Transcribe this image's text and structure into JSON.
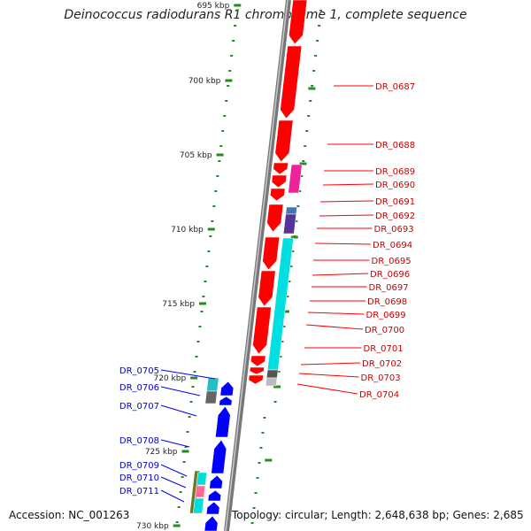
{
  "title": "Deinococcus radiodurans R1 chromosome 1, complete sequence",
  "footer": {
    "accession": "Accession: NC_001263",
    "topology": "Topology: circular; Length: 2,648,638 bp; Genes: 2,685"
  },
  "colors": {
    "forward_strand": "#ff0000",
    "reverse_strand": "#0000ff",
    "backbone": "#808080",
    "tick": "#228b22",
    "label_forward": "#cc0000",
    "label_reverse": "#0000cc"
  },
  "ruler_labels": [
    "695 kbp",
    "700 kbp",
    "705 kbp",
    "710 kbp",
    "715 kbp",
    "720 kbp",
    "725 kbp",
    "730 kbp"
  ],
  "genes_forward": [
    "DR_0687",
    "DR_0688",
    "DR_0689",
    "DR_0690",
    "DR_0691",
    "DR_0692",
    "DR_0693",
    "DR_0694",
    "DR_0695",
    "DR_0696",
    "DR_0697",
    "DR_0698",
    "DR_0699",
    "DR_0700",
    "DR_0701",
    "DR_0702",
    "DR_0703",
    "DR_0704"
  ],
  "genes_reverse": [
    "DR_0705",
    "DR_0706",
    "DR_0707",
    "DR_0708",
    "DR_0709",
    "DR_0710",
    "DR_0711"
  ]
}
